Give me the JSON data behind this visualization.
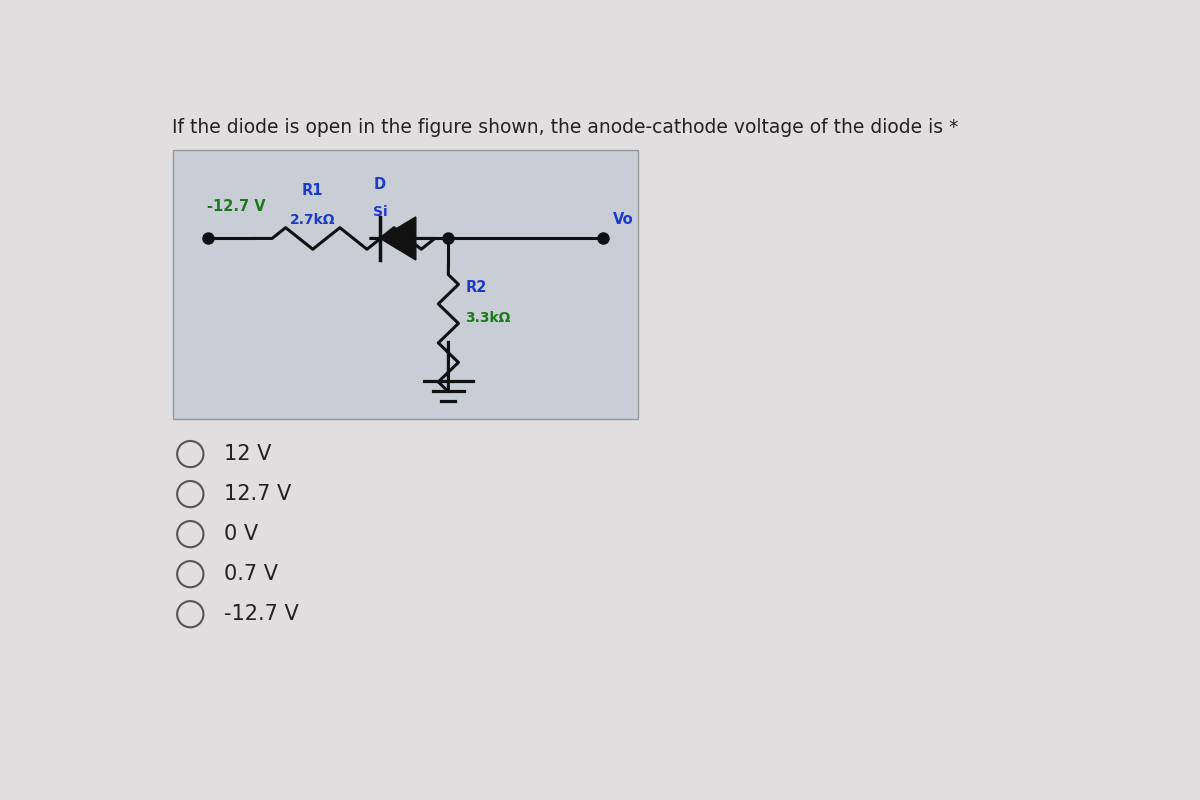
{
  "title": "If the diode is open in the figure shown, the anode-cathode voltage of the diode is *",
  "title_fontsize": 13.5,
  "title_color": "#222222",
  "bg_color": "#e0dede",
  "circuit_bg_color": "#c8cdd6",
  "circuit_border_color": "#999999",
  "options": [
    "12 V",
    "12.7 V",
    "0 V",
    "0.7 V",
    "-12.7 V"
  ],
  "option_fontsize": 15,
  "option_color": "#222222",
  "source_label": "-12.7 V",
  "R1_label": "R1",
  "R1_value": "2.7kΩ",
  "D_label": "D",
  "D_sublabel": "Si",
  "R2_label": "R2",
  "R2_value": "3.3kΩ",
  "Vo_label": "Vo",
  "label_color_blue": "#1a3cc8",
  "label_color_green": "#1a7a1a",
  "wire_color": "#111111",
  "node_color": "#111111"
}
